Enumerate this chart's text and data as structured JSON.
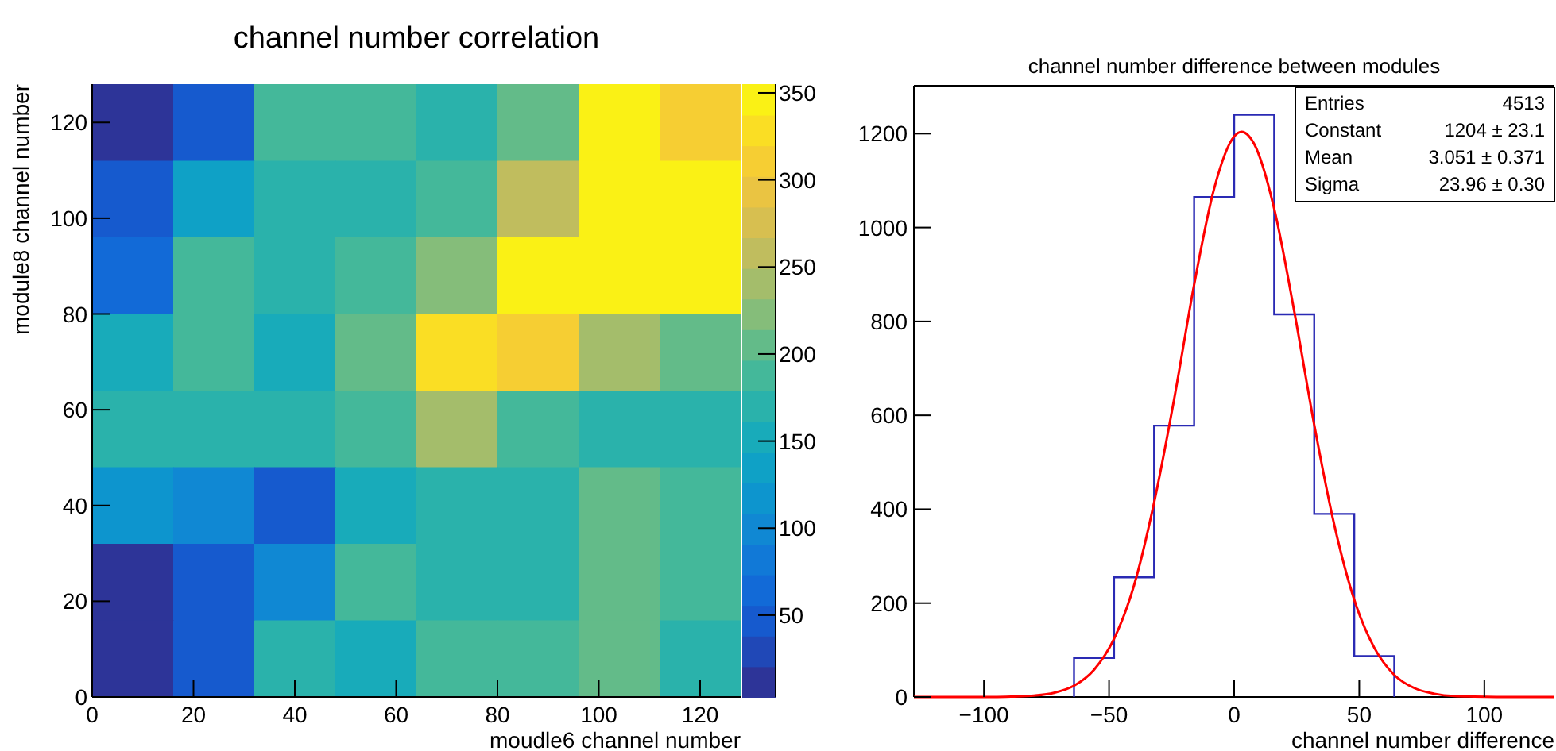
{
  "chart_data": [
    {
      "type": "heatmap",
      "title": "channel number correlation",
      "xlabel": "moudle6 channel number",
      "ylabel": "module8 channel number",
      "x": [
        8,
        24,
        40,
        56,
        72,
        88,
        104,
        120
      ],
      "y": [
        120,
        104,
        88,
        72,
        56,
        40,
        24,
        8
      ],
      "xlim": [
        0,
        128
      ],
      "xticks": [
        0,
        20,
        40,
        60,
        80,
        100,
        120
      ],
      "ylim": [
        0,
        128
      ],
      "yticks": [
        0,
        20,
        40,
        60,
        80,
        100,
        120
      ],
      "cells": [
        [
          12,
          55,
          190,
          190,
          170,
          210,
          350,
          315
        ],
        [
          40,
          130,
          170,
          170,
          190,
          265,
          350,
          350
        ],
        [
          70,
          190,
          170,
          190,
          230,
          350,
          350,
          350
        ],
        [
          155,
          190,
          150,
          210,
          335,
          315,
          245,
          210
        ],
        [
          170,
          170,
          170,
          190,
          245,
          190,
          170,
          170
        ],
        [
          125,
          100,
          55,
          150,
          170,
          170,
          210,
          195
        ],
        [
          12,
          40,
          95,
          190,
          170,
          170,
          210,
          195
        ],
        [
          12,
          55,
          170,
          155,
          190,
          190,
          210,
          170
        ]
      ],
      "clim": [
        3,
        355
      ],
      "cticks": [
        50,
        100,
        150,
        200,
        250,
        300,
        350
      ]
    },
    {
      "type": "histogram",
      "title": "channel number difference between modules",
      "xlabel": "channel number difference",
      "bins": [
        -64,
        -48,
        -32,
        -16,
        0,
        16,
        32,
        48,
        64
      ],
      "values": [
        83,
        255,
        578,
        1065,
        1240,
        815,
        390,
        87
      ],
      "color": "#2a2ab4",
      "series": [
        {
          "type": "line",
          "color": "#ff0000",
          "x": [
            -128,
            -112,
            -96,
            -88,
            -80,
            -72,
            -64,
            -56,
            -48,
            -40,
            -32,
            -24,
            -16,
            -8,
            0,
            3,
            8,
            16,
            24,
            32,
            40,
            48,
            56,
            64,
            72,
            80,
            88,
            96,
            112,
            128
          ],
          "values": [
            0,
            0,
            0,
            1,
            3,
            9,
            24,
            58,
            124,
            238,
            414,
            634,
            878,
            1083,
            1194,
            1204,
            1178,
            1040,
            822,
            580,
            367,
            207,
            105,
            47,
            19,
            7,
            2,
            1,
            0,
            0
          ]
        }
      ],
      "xlim": [
        -128,
        128
      ],
      "xticks": [
        {
          "value": -100,
          "label": "−100"
        },
        {
          "value": -50,
          "label": "−50"
        },
        0,
        50,
        100
      ],
      "ylim": [
        0,
        1302
      ],
      "yticks": [
        0,
        200,
        400,
        600,
        800,
        1000,
        1200
      ],
      "annotations": [
        "Entries",
        "4513",
        "Constant",
        "1204 ± 23.1",
        "Mean",
        "3.051 ± 0.371",
        "Sigma",
        "23.96 ± 0.30"
      ]
    }
  ]
}
